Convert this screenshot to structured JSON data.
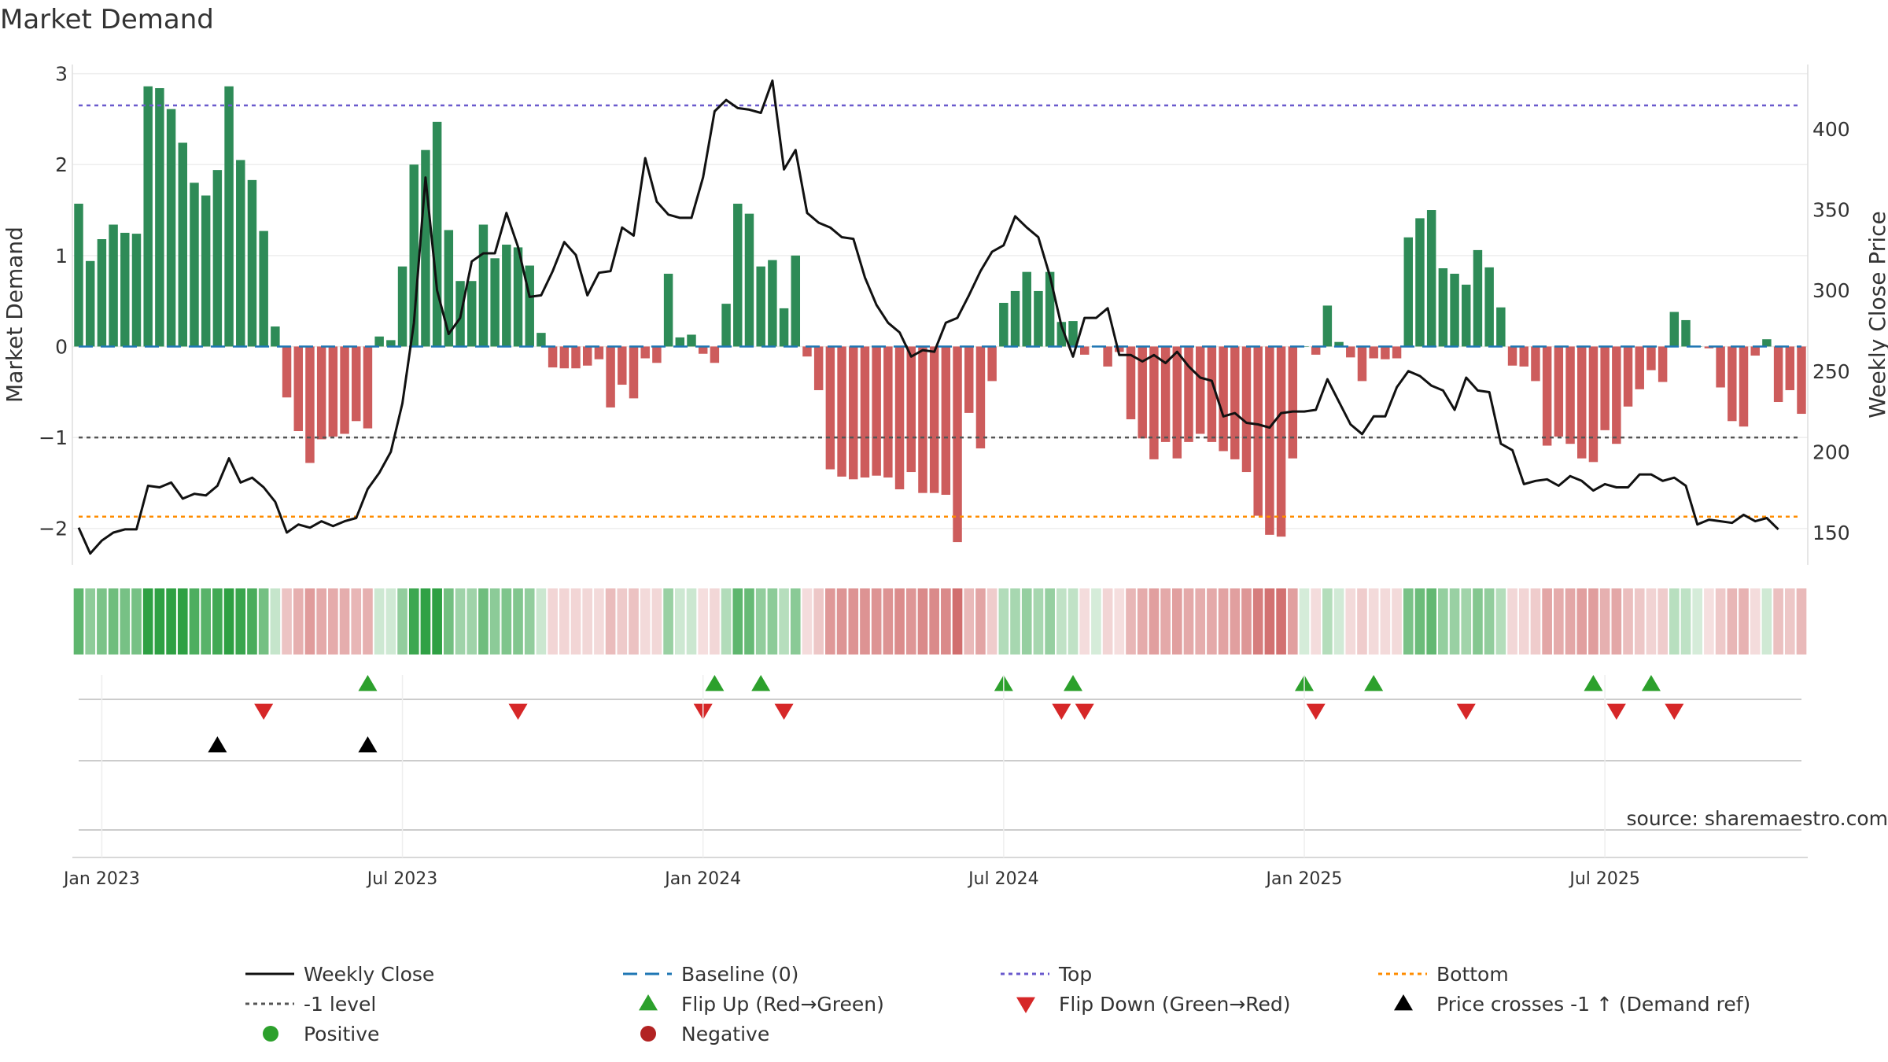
{
  "title": "Market Demand",
  "source": "source: sharemaestro.com",
  "colors": {
    "positive_bar": "#2e8b57",
    "negative_bar": "#cd5c5c",
    "price_line": "#111111",
    "baseline": "#1f77b4",
    "top_line": "#6a5acd",
    "minus1_line": "#555555",
    "bottom_line": "#ff8c00",
    "flip_up": "#2ca02c",
    "flip_down": "#d62728",
    "cross_marker": "#000000",
    "positive_dot": "#2ca02c",
    "negative_dot": "#b22222"
  },
  "chart_data": {
    "type": "bar",
    "title": "Market Demand",
    "ylabel": "Market Demand",
    "y2label": "Weekly Close Price",
    "ylim": [
      -2.4,
      3.1
    ],
    "y2lim": [
      130,
      440
    ],
    "yticks": [
      "3",
      "2",
      "1",
      "0",
      "−1",
      "−2"
    ],
    "y2ticks": [
      "400",
      "350",
      "300",
      "250",
      "200",
      "150"
    ],
    "x_tick_labels": [
      "Jan 2023",
      "Jul 2023",
      "Jan 2024",
      "Jul 2024",
      "Jan 2025",
      "Jul 2025"
    ],
    "x_tick_index": [
      2,
      28,
      54,
      80,
      106,
      132
    ],
    "reference_levels": {
      "top": 2.65,
      "minus_one": -1,
      "bottom": -1.87,
      "baseline": 0
    },
    "demand": [
      1.57,
      0.94,
      1.18,
      1.34,
      1.25,
      1.24,
      2.86,
      2.84,
      2.61,
      2.24,
      1.8,
      1.66,
      1.94,
      2.86,
      2.05,
      1.83,
      1.27,
      0.22,
      -0.56,
      -0.93,
      -1.28,
      -1.02,
      -0.99,
      -0.96,
      -0.82,
      -0.9,
      0.11,
      0.07,
      0.88,
      2.0,
      2.16,
      2.47,
      1.28,
      0.72,
      0.72,
      1.34,
      0.97,
      1.12,
      1.09,
      0.89,
      0.15,
      -0.23,
      -0.24,
      -0.24,
      -0.21,
      -0.14,
      -0.67,
      -0.42,
      -0.57,
      -0.13,
      -0.18,
      0.8,
      0.1,
      0.13,
      -0.08,
      -0.18,
      0.47,
      1.57,
      1.46,
      0.88,
      0.95,
      0.42,
      1.0,
      -0.11,
      -0.48,
      -1.35,
      -1.43,
      -1.46,
      -1.44,
      -1.42,
      -1.44,
      -1.57,
      -1.38,
      -1.61,
      -1.61,
      -1.63,
      -2.15,
      -0.73,
      -1.12,
      -0.38,
      0.48,
      0.61,
      0.82,
      0.61,
      0.82,
      0.27,
      0.28,
      -0.09,
      0.0,
      -0.22,
      -0.06,
      -0.8,
      -1.01,
      -1.24,
      -1.05,
      -1.23,
      -1.05,
      -0.96,
      -1.05,
      -1.15,
      -1.24,
      -1.38,
      -1.86,
      -2.07,
      -2.09,
      -1.23,
      0.0,
      -0.09,
      0.45,
      0.05,
      -0.12,
      -0.38,
      -0.13,
      -0.14,
      -0.13,
      1.2,
      1.41,
      1.5,
      0.86,
      0.8,
      0.68,
      1.06,
      0.87,
      0.43,
      -0.21,
      -0.22,
      -0.38,
      -1.09,
      -0.99,
      -1.07,
      -1.23,
      -1.27,
      -0.92,
      -1.07,
      -0.66,
      -0.47,
      -0.26,
      -0.39,
      0.38,
      0.29,
      0.0,
      -0.02,
      -0.45,
      -0.82,
      -0.88,
      -0.1,
      0.08,
      -0.61,
      -0.48,
      -0.74
    ],
    "close": [
      153,
      137,
      145,
      150,
      152,
      152,
      179,
      178,
      181,
      171,
      174,
      173,
      179,
      196,
      181,
      184,
      178,
      169,
      150,
      155,
      153,
      157,
      154,
      157,
      159,
      177,
      187,
      200,
      230,
      280,
      370,
      300,
      273,
      283,
      318,
      323,
      323,
      348,
      327,
      296,
      297,
      312,
      330,
      322,
      297,
      311,
      312,
      339,
      334,
      382,
      355,
      347,
      345,
      345,
      370,
      411,
      418,
      413,
      412,
      410,
      430,
      375,
      387,
      348,
      342,
      339,
      333,
      332,
      308,
      291,
      280,
      274,
      259,
      263,
      262,
      280,
      283,
      297,
      312,
      324,
      328,
      346,
      339,
      333,
      309,
      278,
      259,
      283,
      283,
      289,
      260,
      260,
      256,
      260,
      255,
      262,
      253,
      246,
      244,
      222,
      224,
      218,
      217,
      215,
      224,
      225,
      225,
      226,
      245,
      231,
      217,
      211,
      222,
      222,
      240,
      250,
      247,
      241,
      238,
      226,
      246,
      238,
      237,
      205,
      201,
      180,
      182,
      183,
      179,
      185,
      182,
      176,
      180,
      178,
      178,
      186,
      186,
      182,
      184,
      179,
      155,
      158,
      157,
      156,
      161,
      157,
      159,
      152
    ],
    "heat_strip": "one colour cell per week mirroring the demand value (green = positive, red = negative)",
    "flip_up_index": [
      25,
      55,
      59,
      80,
      86,
      106,
      112,
      131,
      136
    ],
    "flip_down_index": [
      16,
      38,
      54,
      61,
      85,
      87,
      107,
      120,
      133,
      138
    ],
    "cross_up_index": [
      12,
      25
    ]
  },
  "legend": [
    {
      "key": "weekly_close",
      "label": "Weekly Close"
    },
    {
      "key": "baseline",
      "label": "Baseline (0)"
    },
    {
      "key": "top",
      "label": "Top"
    },
    {
      "key": "bottom",
      "label": "Bottom"
    },
    {
      "key": "minus1",
      "label": "-1 level"
    },
    {
      "key": "flip_up",
      "label": "Flip Up (Red→Green)"
    },
    {
      "key": "flip_down",
      "label": "Flip Down (Green→Red)"
    },
    {
      "key": "cross",
      "label": "Price crosses -1 ↑ (Demand ref)"
    },
    {
      "key": "positive",
      "label": "Positive"
    },
    {
      "key": "negative",
      "label": "Negative"
    }
  ]
}
